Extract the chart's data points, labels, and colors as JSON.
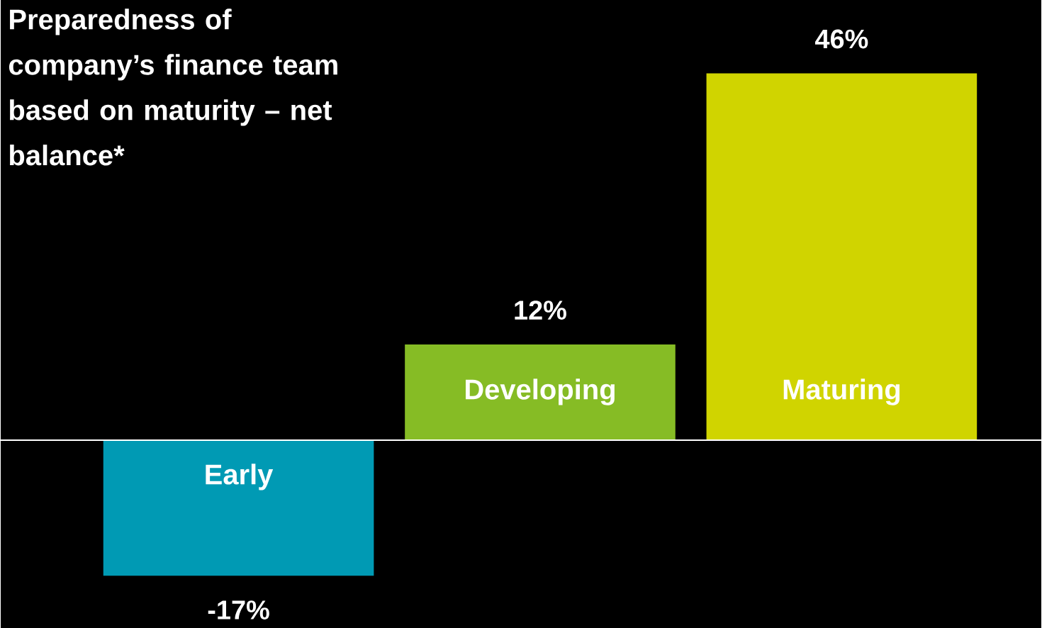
{
  "chart_data": {
    "type": "bar",
    "title": "Preparedness of company’s finance team based on maturity – net balance*",
    "categories": [
      "Early",
      "Developing",
      "Maturing"
    ],
    "values": [
      -17,
      12,
      46
    ],
    "colors": [
      "#009ab4",
      "#86bc25",
      "#d0d400"
    ],
    "value_labels": [
      "-17%",
      "12%",
      "46%"
    ]
  }
}
